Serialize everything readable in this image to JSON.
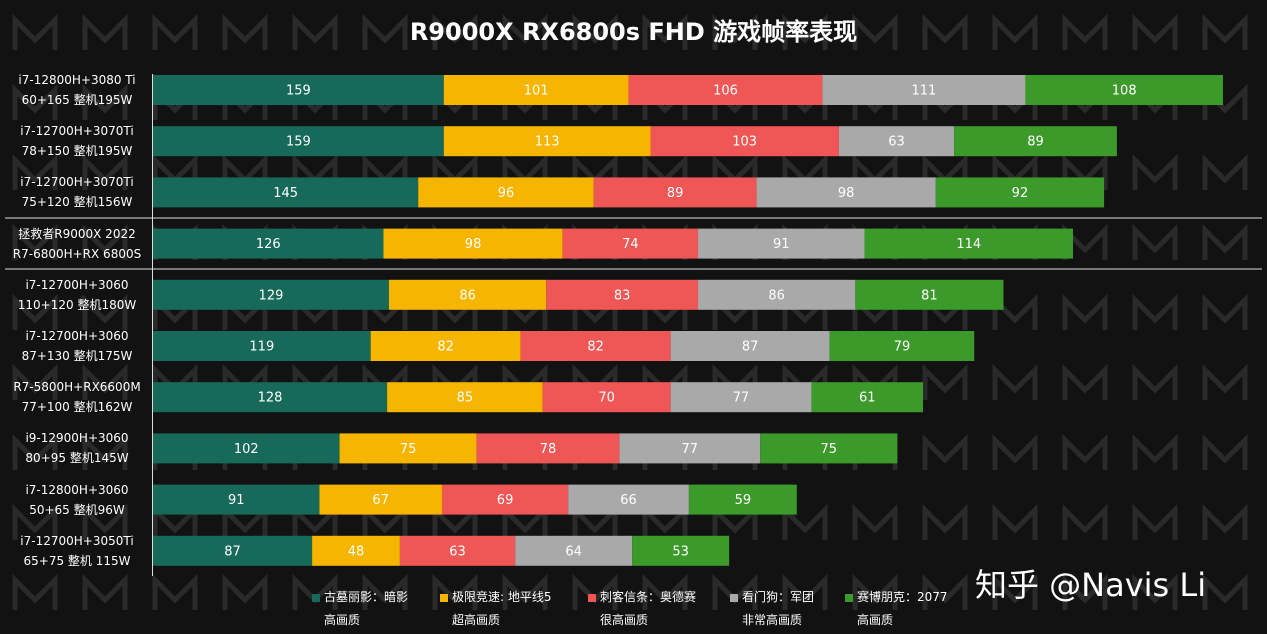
{
  "chart_data": {
    "type": "stacked-barh",
    "title": "R9000X RX6800s FHD 游戏帧率表现",
    "watermark": "知乎 @Navis Li",
    "categories": [
      "i7-12800H+3080 Ti\n60+165 整机195W",
      "i7-12700H+3070Ti\n78+150 整机195W",
      "i7-12700H+3070Ti\n75+120 整机156W",
      "拯救者R9000X 2022\nR7-6800H+RX 6800S",
      "i7-12700H+3060\n110+120 整机180W",
      "i7-12700H+3060\n87+130 整机175W",
      "R7-5800H+RX6600M\n77+100 整机162W",
      "i9-12900H+3060\n80+95 整机145W",
      "i7-12800H+3060\n50+65 整机96W",
      "i7-12700H+3050Ti\n65+75 整机 115W"
    ],
    "series": [
      {
        "name": "古墓丽影：暗影\n高画质",
        "color": "#17695a",
        "values": [
          159,
          159,
          145,
          126,
          129,
          119,
          128,
          102,
          91,
          87
        ]
      },
      {
        "name": "极限竞速: 地平线5\n超高画质",
        "color": "#f6b500",
        "values": [
          101,
          113,
          96,
          98,
          86,
          82,
          85,
          75,
          67,
          48
        ]
      },
      {
        "name": "刺客信条：奥德赛\n很高画质",
        "color": "#ef5656",
        "values": [
          106,
          103,
          89,
          74,
          83,
          82,
          70,
          78,
          69,
          63
        ]
      },
      {
        "name": "看门狗：军团\n非常高画质",
        "color": "#a9a9a9",
        "values": [
          111,
          63,
          98,
          91,
          86,
          87,
          77,
          77,
          66,
          64
        ]
      },
      {
        "name": "赛博朋克：2077\n高画质",
        "color": "#3c9a2b",
        "values": [
          108,
          89,
          92,
          114,
          81,
          79,
          61,
          75,
          59,
          53
        ]
      }
    ]
  }
}
